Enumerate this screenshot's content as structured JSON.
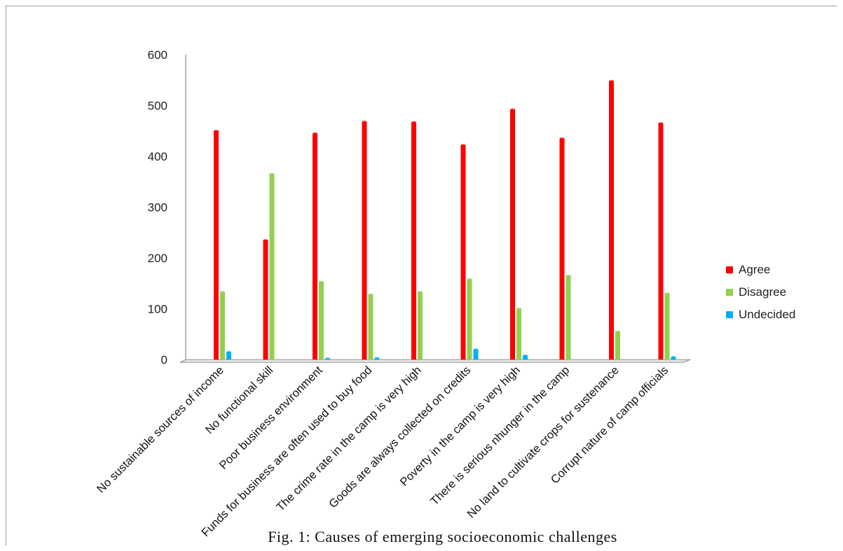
{
  "caption": "Fig. 1: Causes of emerging socioeconomic challenges",
  "chart_data": {
    "type": "bar",
    "title": "",
    "xlabel": "",
    "ylabel": "",
    "ylim": [
      0,
      600
    ],
    "yticks": [
      0,
      100,
      200,
      300,
      400,
      500,
      600
    ],
    "grid": false,
    "legend_position": "right",
    "categories": [
      "No sustainable sources of income",
      "No functional skill",
      "Poor business environment",
      "Funds for business are often used to buy food",
      "The crime rate in the camp is very high",
      "Goods are always collected on credits",
      "Poverty in the camp is very high",
      "There is serious nhunger in the camp",
      "No land to cultivate crops for sustenance",
      "Corrupt nature of camp officials"
    ],
    "series": [
      {
        "name": "Agree",
        "color": "#ff0000",
        "values": [
          450,
          235,
          445,
          468,
          467,
          422,
          492,
          435,
          548,
          465
        ]
      },
      {
        "name": "Disagree",
        "color": "#92d050",
        "values": [
          133,
          365,
          153,
          128,
          133,
          158,
          100,
          165,
          55,
          130
        ]
      },
      {
        "name": "Undecided",
        "color": "#00b0f0",
        "values": [
          15,
          0,
          2,
          3,
          0,
          20,
          8,
          0,
          0,
          5
        ]
      }
    ]
  }
}
